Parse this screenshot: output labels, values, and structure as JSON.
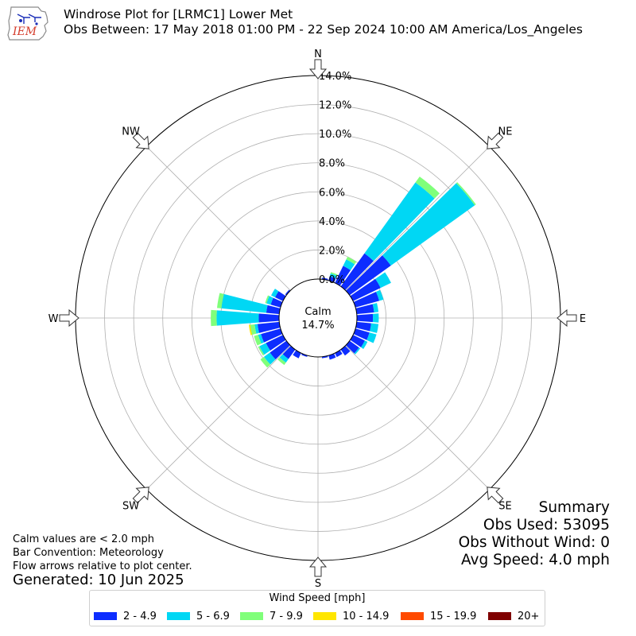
{
  "title": "Windrose Plot for [LRMC1] Lower Met",
  "subtitle": "Obs Between: 17 May 2018 01:00 PM - 22 Sep 2024 10:00 AM America/Los_Angeles",
  "logo_text": "IEM",
  "calm": {
    "label": "Calm",
    "value": "14.7%"
  },
  "summary": {
    "heading": "Summary",
    "obs_used": "Obs Used: 53095",
    "obs_without_wind": "Obs Without Wind: 0",
    "avg_speed": "Avg Speed: 4.0 mph"
  },
  "notes": [
    "Calm values are < 2.0 mph",
    "Bar Convention: Meteorology",
    "Flow arrows relative to plot center."
  ],
  "generated": "Generated: 10 Jun 2025",
  "legend": {
    "title": "Wind Speed [mph]",
    "items": [
      {
        "label": "2 - 4.9",
        "color": "#0d2dff"
      },
      {
        "label": "5 - 6.9",
        "color": "#00d7f4"
      },
      {
        "label": "7 - 9.9",
        "color": "#80ff7a"
      },
      {
        "label": "10 - 14.9",
        "color": "#ffe600"
      },
      {
        "label": "15 - 19.9",
        "color": "#ff4a00"
      },
      {
        "label": "20+",
        "color": "#7f0000"
      }
    ]
  },
  "chart_data": {
    "type": "windrose",
    "calm_percent": 14.7,
    "radial_unit": "%",
    "radial_ticks": [
      "0.0%",
      "2.0%",
      "4.0%",
      "6.0%",
      "8.0%",
      "10.0%",
      "12.0%",
      "14.0%"
    ],
    "rmax": 14.0,
    "compass_labels": [
      "N",
      "NE",
      "E",
      "SE",
      "S",
      "SW",
      "W",
      "NW"
    ],
    "direction_step_deg": 10,
    "directions_deg": [
      10,
      20,
      30,
      40,
      50,
      60,
      70,
      80,
      90,
      100,
      110,
      120,
      130,
      140,
      150,
      160,
      170,
      180,
      190,
      200,
      210,
      220,
      230,
      240,
      250,
      260,
      270,
      280,
      290,
      300,
      310,
      320,
      330,
      340,
      350,
      360
    ],
    "series": [
      {
        "name": "2 - 4.9",
        "values": [
          0.1,
          0.3,
          1.3,
          2.8,
          3.5,
          2.1,
          1.7,
          1.2,
          1.1,
          1.0,
          1.0,
          0.9,
          0.8,
          0.5,
          0.3,
          0.3,
          0.1,
          0.0,
          0.0,
          0.1,
          0.4,
          0.8,
          1.4,
          1.3,
          1.4,
          1.5,
          1.4,
          0.9,
          0.7,
          0.6,
          0.1,
          0.0,
          0.0,
          0.0,
          0.0,
          0.0
        ]
      },
      {
        "name": "5 - 6.9",
        "values": [
          0.0,
          0.2,
          0.5,
          6.0,
          7.1,
          0.8,
          0.3,
          0.3,
          0.4,
          0.5,
          0.5,
          0.2,
          0.1,
          0.0,
          0.0,
          0.0,
          0.0,
          0.0,
          0.0,
          0.0,
          0.0,
          0.3,
          0.5,
          0.5,
          0.2,
          0.2,
          2.9,
          3.1,
          0.3,
          0.3,
          0.0,
          0.0,
          0.0,
          0.0,
          0.0,
          0.0
        ]
      },
      {
        "name": "7 - 9.9",
        "values": [
          0.0,
          0.1,
          0.2,
          0.5,
          0.1,
          0.0,
          0.0,
          0.0,
          0.0,
          0.0,
          0.0,
          0.0,
          0.0,
          0.0,
          0.0,
          0.0,
          0.0,
          0.0,
          0.0,
          0.0,
          0.0,
          0.2,
          0.3,
          0.1,
          0.3,
          0.3,
          0.4,
          0.3,
          0.1,
          0.0,
          0.0,
          0.0,
          0.0,
          0.0,
          0.0,
          0.0
        ]
      },
      {
        "name": "10 - 14.9",
        "values": [
          0.0,
          0.0,
          0.0,
          0.0,
          0.0,
          0.0,
          0.0,
          0.0,
          0.0,
          0.0,
          0.0,
          0.0,
          0.0,
          0.0,
          0.0,
          0.0,
          0.0,
          0.0,
          0.0,
          0.0,
          0.0,
          0.0,
          0.0,
          0.0,
          0.0,
          0.1,
          0.0,
          0.0,
          0.0,
          0.0,
          0.0,
          0.0,
          0.0,
          0.0,
          0.0,
          0.0
        ]
      }
    ]
  }
}
